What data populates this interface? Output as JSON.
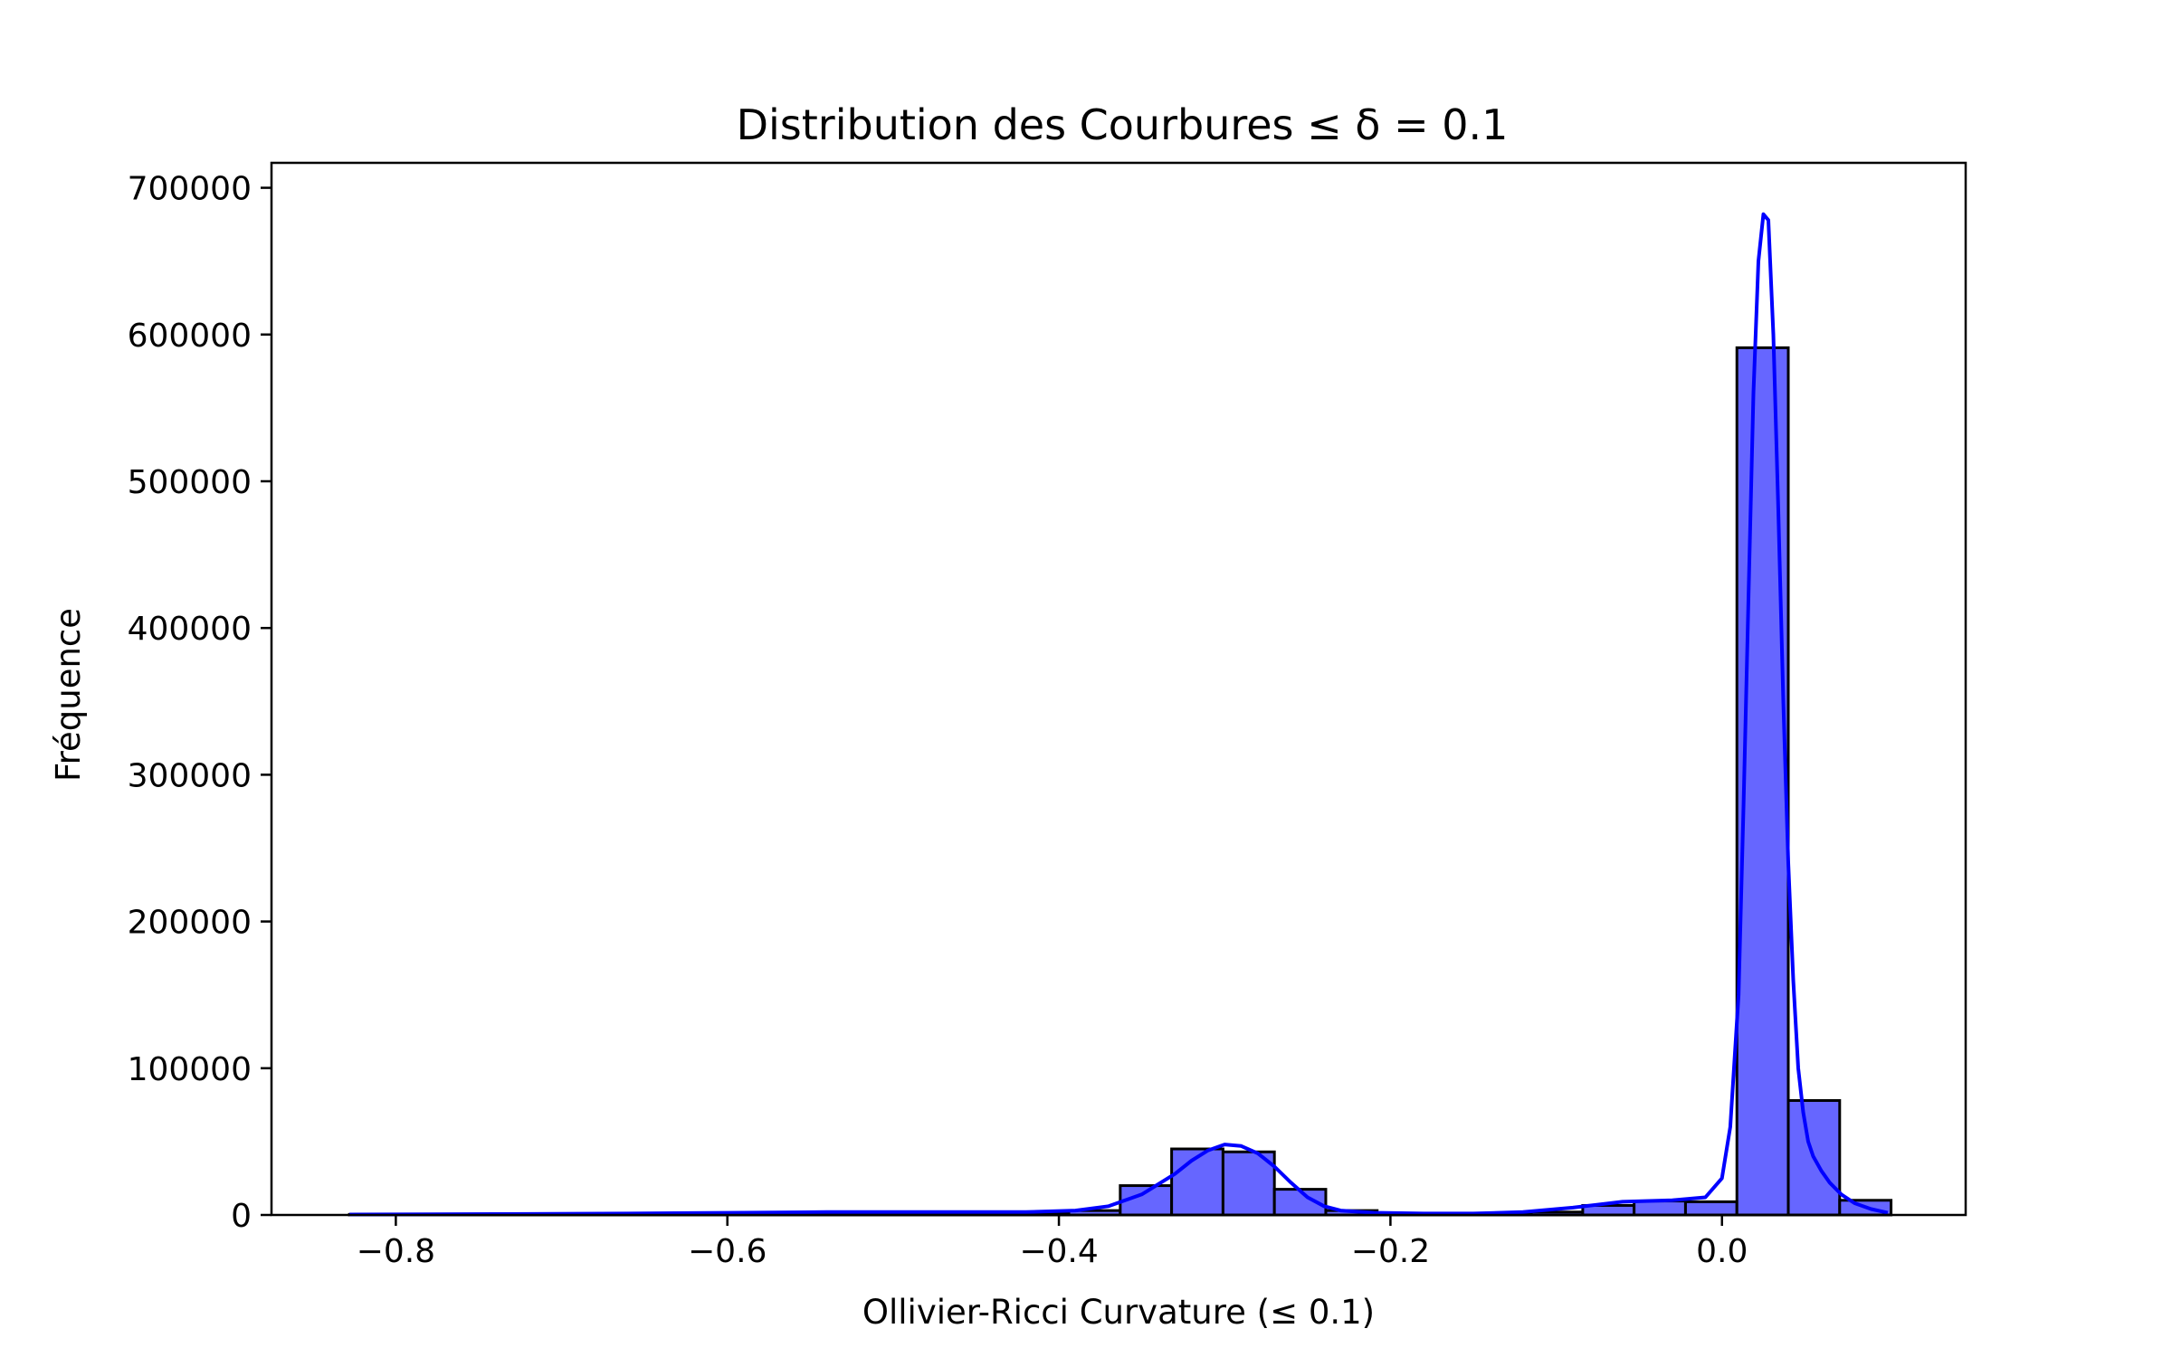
{
  "chart_data": {
    "type": "bar",
    "title": "Distribution des Courbures ≤ δ = 0.1",
    "xlabel": "Ollivier-Ricci Curvature (≤ 0.1)",
    "ylabel": "Fréquence",
    "xlim": [
      -0.875,
      0.147
    ],
    "ylim": [
      0,
      717000
    ],
    "x_ticks": [
      -0.8,
      -0.6,
      -0.4,
      -0.2,
      0.0
    ],
    "x_tick_labels": [
      "−0.8",
      "−0.6",
      "−0.4",
      "−0.2",
      "0.0"
    ],
    "y_ticks": [
      0,
      100000,
      200000,
      300000,
      400000,
      500000,
      600000,
      700000
    ],
    "y_tick_labels": [
      "0",
      "100000",
      "200000",
      "300000",
      "400000",
      "500000",
      "600000",
      "700000"
    ],
    "grid": false,
    "bar_color": "#6666ff",
    "edge_color": "#000000",
    "kde_color": "#0000ff",
    "bins": [
      {
        "x0": -0.828,
        "x1": -0.797,
        "count": 400
      },
      {
        "x0": -0.797,
        "x1": -0.766,
        "count": 500
      },
      {
        "x0": -0.766,
        "x1": -0.735,
        "count": 600
      },
      {
        "x0": -0.735,
        "x1": -0.704,
        "count": 700
      },
      {
        "x0": -0.704,
        "x1": -0.673,
        "count": 800
      },
      {
        "x0": -0.673,
        "x1": -0.642,
        "count": 900
      },
      {
        "x0": -0.642,
        "x1": -0.611,
        "count": 1000
      },
      {
        "x0": -0.611,
        "x1": -0.58,
        "count": 1200
      },
      {
        "x0": -0.58,
        "x1": -0.549,
        "count": 1400
      },
      {
        "x0": -0.549,
        "x1": -0.518,
        "count": 1500
      },
      {
        "x0": -0.518,
        "x1": -0.487,
        "count": 1500
      },
      {
        "x0": -0.487,
        "x1": -0.456,
        "count": 1400
      },
      {
        "x0": -0.456,
        "x1": -0.425,
        "count": 1400
      },
      {
        "x0": -0.425,
        "x1": -0.394,
        "count": 1500
      },
      {
        "x0": -0.394,
        "x1": -0.363,
        "count": 3000
      },
      {
        "x0": -0.363,
        "x1": -0.332,
        "count": 20000
      },
      {
        "x0": -0.332,
        "x1": -0.301,
        "count": 45000
      },
      {
        "x0": -0.301,
        "x1": -0.27,
        "count": 43000
      },
      {
        "x0": -0.27,
        "x1": -0.239,
        "count": 17500
      },
      {
        "x0": -0.239,
        "x1": -0.208,
        "count": 3000
      },
      {
        "x0": -0.208,
        "x1": -0.177,
        "count": 1200
      },
      {
        "x0": -0.177,
        "x1": -0.146,
        "count": 1000
      },
      {
        "x0": -0.146,
        "x1": -0.115,
        "count": 1200
      },
      {
        "x0": -0.115,
        "x1": -0.084,
        "count": 2000
      },
      {
        "x0": -0.084,
        "x1": -0.053,
        "count": 6500
      },
      {
        "x0": -0.053,
        "x1": -0.022,
        "count": 9500
      },
      {
        "x0": -0.022,
        "x1": 0.009,
        "count": 9000
      },
      {
        "x0": 0.009,
        "x1": 0.04,
        "count": 591000
      },
      {
        "x0": 0.04,
        "x1": 0.071,
        "count": 78000
      },
      {
        "x0": 0.071,
        "x1": 0.102,
        "count": 10000
      }
    ],
    "kde": {
      "x": [
        -0.828,
        -0.78,
        -0.72,
        -0.66,
        -0.6,
        -0.54,
        -0.48,
        -0.42,
        -0.39,
        -0.37,
        -0.35,
        -0.33,
        -0.32,
        -0.31,
        -0.3,
        -0.29,
        -0.28,
        -0.27,
        -0.26,
        -0.25,
        -0.24,
        -0.23,
        -0.21,
        -0.18,
        -0.15,
        -0.12,
        -0.09,
        -0.06,
        -0.03,
        -0.01,
        0.0,
        0.005,
        0.01,
        0.013,
        0.016,
        0.019,
        0.022,
        0.025,
        0.028,
        0.031,
        0.034,
        0.037,
        0.04,
        0.043,
        0.046,
        0.049,
        0.052,
        0.055,
        0.06,
        0.065,
        0.072,
        0.08,
        0.09,
        0.1
      ],
      "y": [
        300,
        500,
        700,
        1000,
        1500,
        2000,
        2000,
        2000,
        3000,
        6000,
        14000,
        28000,
        37000,
        44000,
        48000,
        47000,
        42000,
        33000,
        22000,
        12000,
        6000,
        3000,
        1500,
        1000,
        1000,
        2000,
        5000,
        9000,
        10000,
        12000,
        25000,
        60000,
        150000,
        280000,
        420000,
        560000,
        650000,
        682000,
        678000,
        600000,
        480000,
        350000,
        240000,
        160000,
        100000,
        70000,
        50000,
        40000,
        30000,
        22000,
        14000,
        8000,
        4000,
        1500
      ]
    }
  }
}
